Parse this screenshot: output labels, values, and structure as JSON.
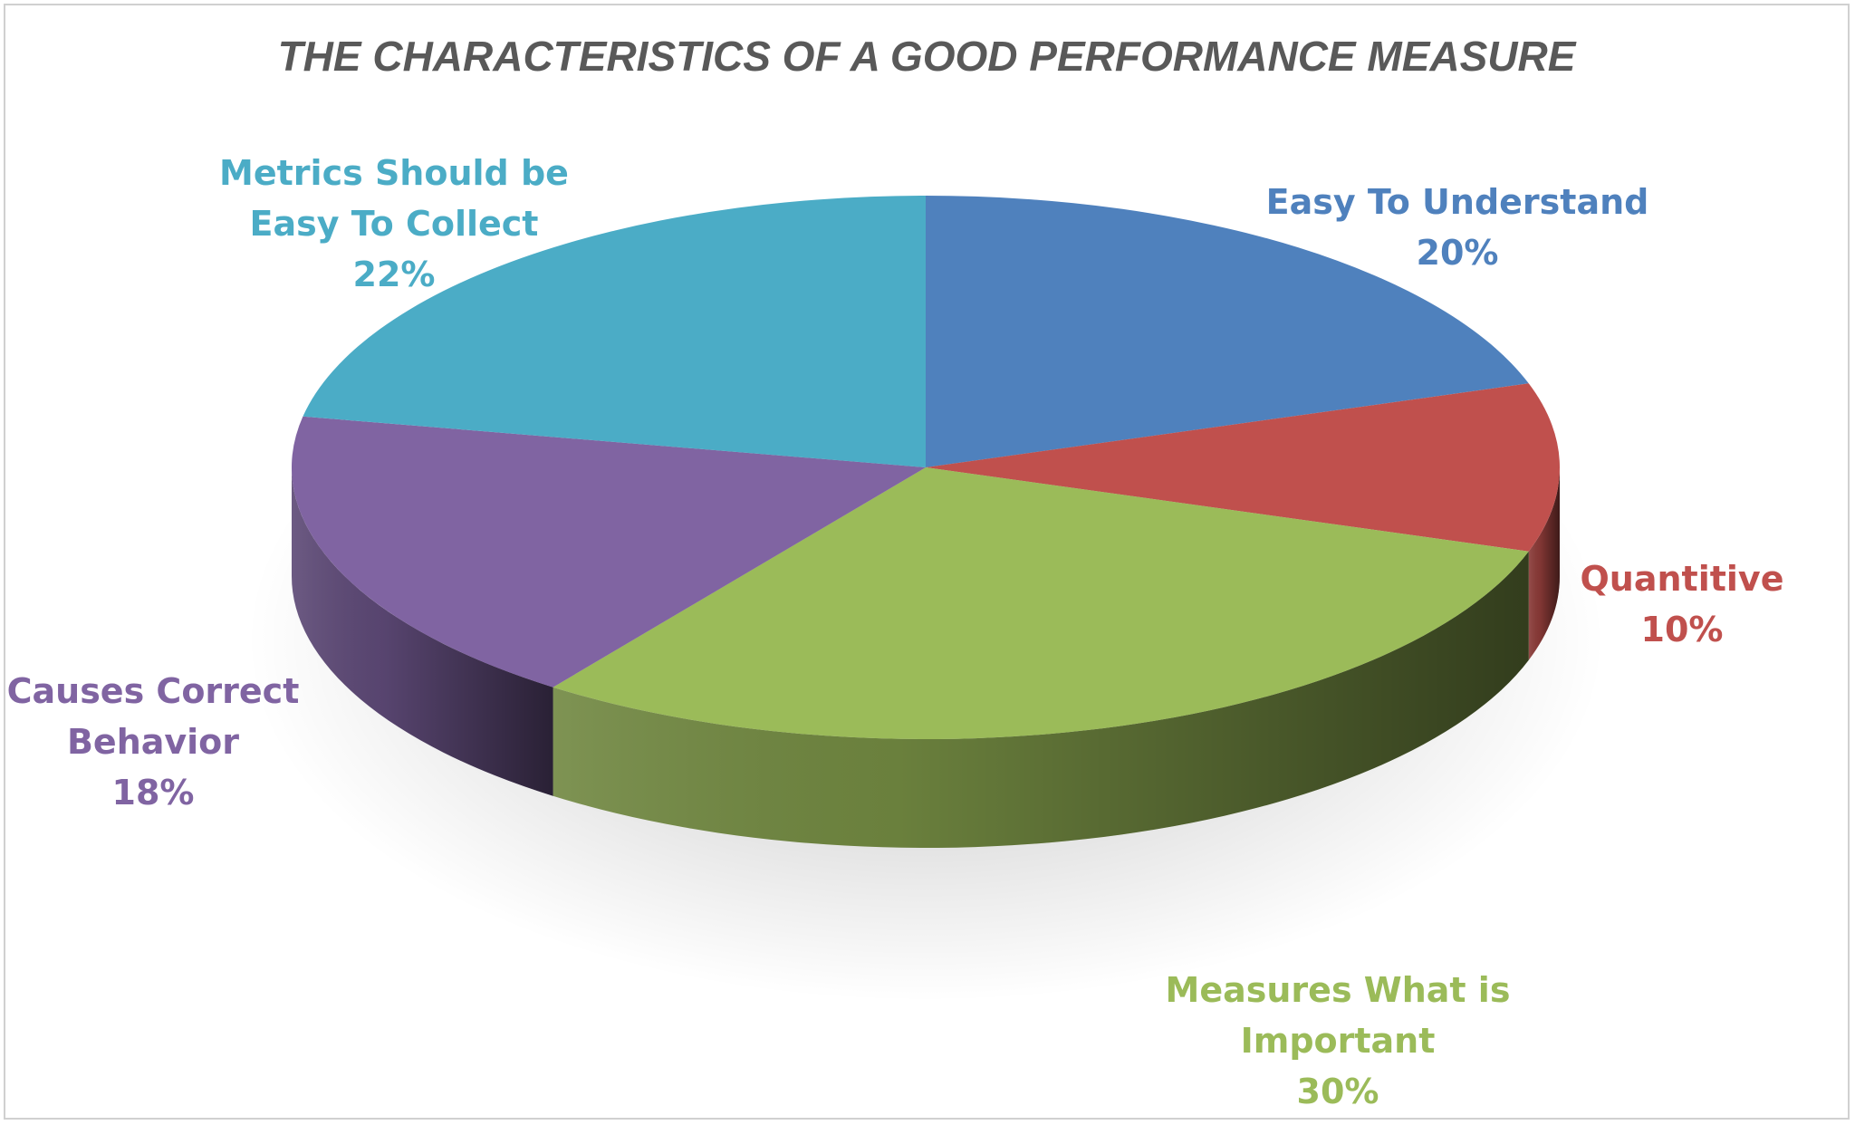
{
  "chart_data": {
    "type": "pie",
    "title": "THE CHARACTERISTICS OF A GOOD PERFORMANCE MEASURE",
    "slices": [
      {
        "label_lines": [
          "Easy To Understand"
        ],
        "percent_label": "20%",
        "value": 20,
        "color": "#4f81bd"
      },
      {
        "label_lines": [
          "Quantitive"
        ],
        "percent_label": "10%",
        "value": 10,
        "color": "#c0504d"
      },
      {
        "label_lines": [
          "Measures What is",
          "Important"
        ],
        "percent_label": "30%",
        "value": 30,
        "color": "#9bbb59"
      },
      {
        "label_lines": [
          "Causes Correct",
          "Behavior"
        ],
        "percent_label": "18%",
        "value": 18,
        "color": "#8064a2"
      },
      {
        "label_lines": [
          "Metrics Should be",
          "Easy To Collect"
        ],
        "percent_label": "22%",
        "value": 22,
        "color": "#4bacc6"
      }
    ],
    "legend": "none",
    "style": "3d-pie"
  }
}
